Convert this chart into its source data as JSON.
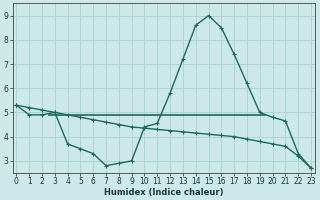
{
  "xlabel": "Humidex (Indice chaleur)",
  "background_color": "#cce8e8",
  "grid_color": "#aed4d4",
  "line_color": "#1a6b5a",
  "x_values": [
    0,
    1,
    2,
    3,
    4,
    5,
    6,
    7,
    8,
    9,
    10,
    11,
    12,
    13,
    14,
    15,
    16,
    17,
    18,
    19,
    20,
    21,
    22,
    23
  ],
  "line1_y": [
    5.3,
    4.9,
    4.9,
    5.0,
    3.7,
    3.5,
    3.3,
    2.8,
    2.9,
    3.0,
    4.4,
    4.55,
    5.8,
    7.2,
    8.6,
    9.0,
    8.5,
    7.4,
    6.2,
    5.0,
    4.8,
    4.65,
    3.3,
    2.7
  ],
  "line2_y": [
    5.3,
    5.2,
    5.1,
    5.0,
    4.9,
    4.8,
    4.7,
    4.6,
    4.5,
    4.4,
    4.35,
    4.3,
    4.25,
    4.2,
    4.15,
    4.1,
    4.05,
    4.0,
    3.9,
    3.8,
    3.7,
    3.6,
    3.2,
    2.7
  ],
  "hline_x_start": 2.5,
  "hline_x_end": 19.5,
  "hline_y": 4.9,
  "xlim": [
    -0.3,
    23.3
  ],
  "ylim": [
    2.5,
    9.5
  ],
  "yticks": [
    3,
    4,
    5,
    6,
    7,
    8,
    9
  ],
  "xticks": [
    0,
    1,
    2,
    3,
    4,
    5,
    6,
    7,
    8,
    9,
    10,
    11,
    12,
    13,
    14,
    15,
    16,
    17,
    18,
    19,
    20,
    21,
    22,
    23
  ],
  "xlabel_fontsize": 6,
  "tick_fontsize": 5.5
}
